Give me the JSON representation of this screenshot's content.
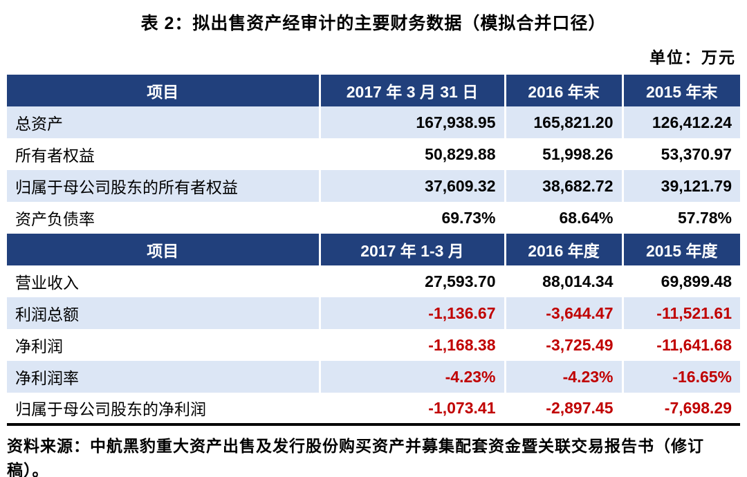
{
  "title": "表 2：拟出售资产经审计的主要财务数据（模拟合并口径）",
  "unit_label": "单位：万元",
  "colors": {
    "header_bg": "#21407C",
    "row_alt_bg": "#DCE6F5",
    "negative": "#C00000"
  },
  "table": {
    "sections": [
      {
        "header": [
          "项目",
          "2017 年 3 月 31 日",
          "2016 年末",
          "2015 年末"
        ],
        "rows": [
          {
            "label": "总资产",
            "values": [
              "167,938.95",
              "165,821.20",
              "126,412.24"
            ]
          },
          {
            "label": "所有者权益",
            "values": [
              "50,829.88",
              "51,998.26",
              "53,370.97"
            ]
          },
          {
            "label": "归属于母公司股东的所有者权益",
            "values": [
              "37,609.32",
              "38,682.72",
              "39,121.79"
            ]
          },
          {
            "label": "资产负债率",
            "values": [
              "69.73%",
              "68.64%",
              "57.78%"
            ]
          }
        ]
      },
      {
        "header": [
          "项目",
          "2017 年 1-3 月",
          "2016 年度",
          "2015 年度"
        ],
        "rows": [
          {
            "label": "营业收入",
            "values": [
              "27,593.70",
              "88,014.34",
              "69,899.48"
            ]
          },
          {
            "label": "利润总额",
            "values": [
              "-1,136.67",
              "-3,644.47",
              "-11,521.61"
            ]
          },
          {
            "label": "净利润",
            "values": [
              "-1,168.38",
              "-3,725.49",
              "-11,641.68"
            ]
          },
          {
            "label": "净利润率",
            "values": [
              "-4.23%",
              "-4.23%",
              "-16.65%"
            ]
          },
          {
            "label": "归属于母公司股东的净利润",
            "values": [
              "-1,073.41",
              "-2,897.45",
              "-7,698.29"
            ]
          }
        ]
      }
    ]
  },
  "source": "资料来源：中航黑豹重大资产出售及发行股份购买资产并募集配套资金暨关联交易报告书（修订稿）。"
}
